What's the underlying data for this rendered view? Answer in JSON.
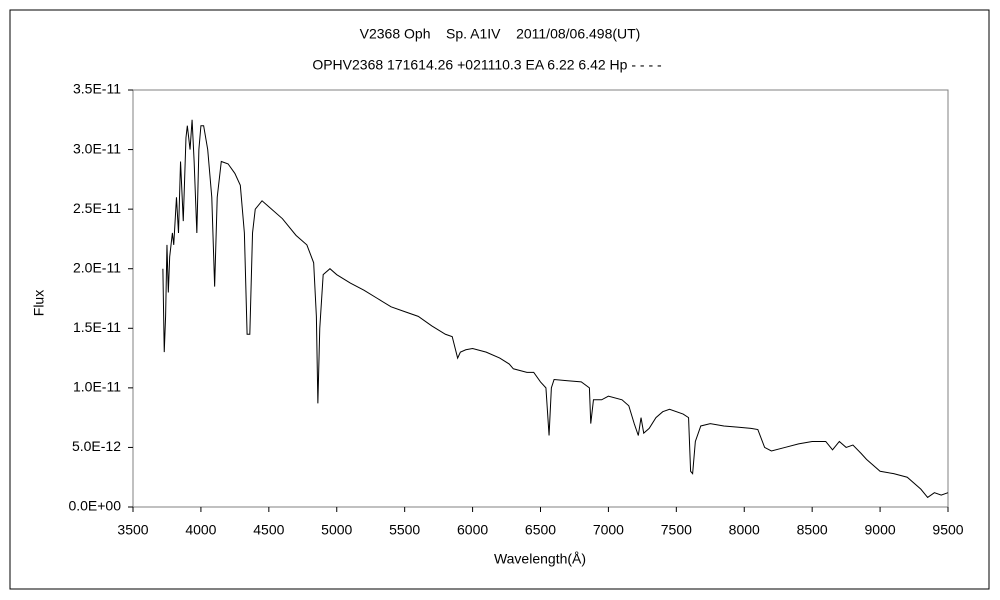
{
  "chart_data": {
    "type": "line",
    "title": "V2368 Oph    Sp. A1IV    2011/08/06.498(UT)",
    "subtitle": "OPHV2368 171614.26 +021110.3 EA 6.22 6.42 Hp - - - -",
    "x_label": "Wavelength(Å)",
    "y_label": "Flux",
    "color": "#000000",
    "grid": false,
    "xlim": [
      3500,
      9500
    ],
    "xticks": [
      3500,
      4000,
      4500,
      5000,
      5500,
      6000,
      6500,
      7000,
      7500,
      8000,
      8500,
      9000,
      9500
    ],
    "ylim": [
      0,
      3.5e-11
    ],
    "yticks": [
      {
        "value": 0,
        "label": "0.0E+00"
      },
      {
        "value": 5e-12,
        "label": "5.0E-12"
      },
      {
        "value": 1e-11,
        "label": "1.0E-11"
      },
      {
        "value": 1.5e-11,
        "label": "1.5E-11"
      },
      {
        "value": 2e-11,
        "label": "2.0E-11"
      },
      {
        "value": 2.5e-11,
        "label": "2.5E-11"
      },
      {
        "value": 3e-11,
        "label": "3.0E-11"
      },
      {
        "value": 3.5e-11,
        "label": "3.5E-11"
      }
    ],
    "x": [
      3720,
      3730,
      3740,
      3750,
      3760,
      3770,
      3790,
      3800,
      3820,
      3835,
      3850,
      3870,
      3890,
      3900,
      3920,
      3935,
      3950,
      3970,
      3985,
      4000,
      4020,
      4050,
      4080,
      4101,
      4120,
      4150,
      4200,
      4250,
      4290,
      4320,
      4340,
      4360,
      4380,
      4400,
      4450,
      4500,
      4600,
      4700,
      4780,
      4830,
      4850,
      4861,
      4875,
      4900,
      4950,
      5000,
      5100,
      5200,
      5300,
      5400,
      5500,
      5600,
      5700,
      5800,
      5850,
      5890,
      5910,
      5950,
      6000,
      6100,
      6200,
      6270,
      6300,
      6400,
      6450,
      6500,
      6540,
      6563,
      6580,
      6600,
      6700,
      6800,
      6860,
      6870,
      6890,
      6950,
      7000,
      7100,
      7150,
      7190,
      7220,
      7240,
      7260,
      7300,
      7350,
      7400,
      7450,
      7550,
      7590,
      7605,
      7620,
      7640,
      7680,
      7750,
      7850,
      7950,
      8050,
      8100,
      8150,
      8200,
      8300,
      8400,
      8500,
      8600,
      8650,
      8700,
      8750,
      8800,
      8860,
      8900,
      9000,
      9100,
      9200,
      9300,
      9350,
      9400,
      9450,
      9500
    ],
    "values": [
      2e-11,
      1.3e-11,
      1.6e-11,
      2.2e-11,
      1.8e-11,
      2.1e-11,
      2.3e-11,
      2.2e-11,
      2.6e-11,
      2.3e-11,
      2.9e-11,
      2.4e-11,
      3.1e-11,
      3.2e-11,
      3e-11,
      3.25e-11,
      2.9e-11,
      2.3e-11,
      3e-11,
      3.2e-11,
      3.2e-11,
      3e-11,
      2.6e-11,
      1.85e-11,
      2.6e-11,
      2.9e-11,
      2.88e-11,
      2.8e-11,
      2.7e-11,
      2.3e-11,
      1.45e-11,
      1.45e-11,
      2.3e-11,
      2.5e-11,
      2.57e-11,
      2.52e-11,
      2.42e-11,
      2.28e-11,
      2.2e-11,
      2.05e-11,
      1.6e-11,
      8.7e-12,
      1.5e-11,
      1.95e-11,
      2e-11,
      1.95e-11,
      1.88e-11,
      1.82e-11,
      1.75e-11,
      1.68e-11,
      1.64e-11,
      1.6e-11,
      1.52e-11,
      1.45e-11,
      1.43e-11,
      1.25e-11,
      1.3e-11,
      1.32e-11,
      1.33e-11,
      1.3e-11,
      1.25e-11,
      1.2e-11,
      1.16e-11,
      1.13e-11,
      1.13e-11,
      1.05e-11,
      1e-11,
      6e-12,
      1e-11,
      1.07e-11,
      1.06e-11,
      1.05e-11,
      1e-11,
      7e-12,
      9e-12,
      9e-12,
      9.3e-12,
      9e-12,
      8.5e-12,
      7e-12,
      6e-12,
      7.5e-12,
      6.2e-12,
      6.6e-12,
      7.5e-12,
      8e-12,
      8.2e-12,
      7.8e-12,
      7.5e-12,
      3e-12,
      2.8e-12,
      5.5e-12,
      6.8e-12,
      7e-12,
      6.8e-12,
      6.7e-12,
      6.6e-12,
      6.5e-12,
      5e-12,
      4.7e-12,
      5e-12,
      5.3e-12,
      5.5e-12,
      5.5e-12,
      4.8e-12,
      5.5e-12,
      5e-12,
      5.2e-12,
      4.5e-12,
      4e-12,
      3e-12,
      2.8e-12,
      2.5e-12,
      1.5e-12,
      8e-13,
      1.2e-12,
      1e-12,
      1.2e-12
    ]
  }
}
